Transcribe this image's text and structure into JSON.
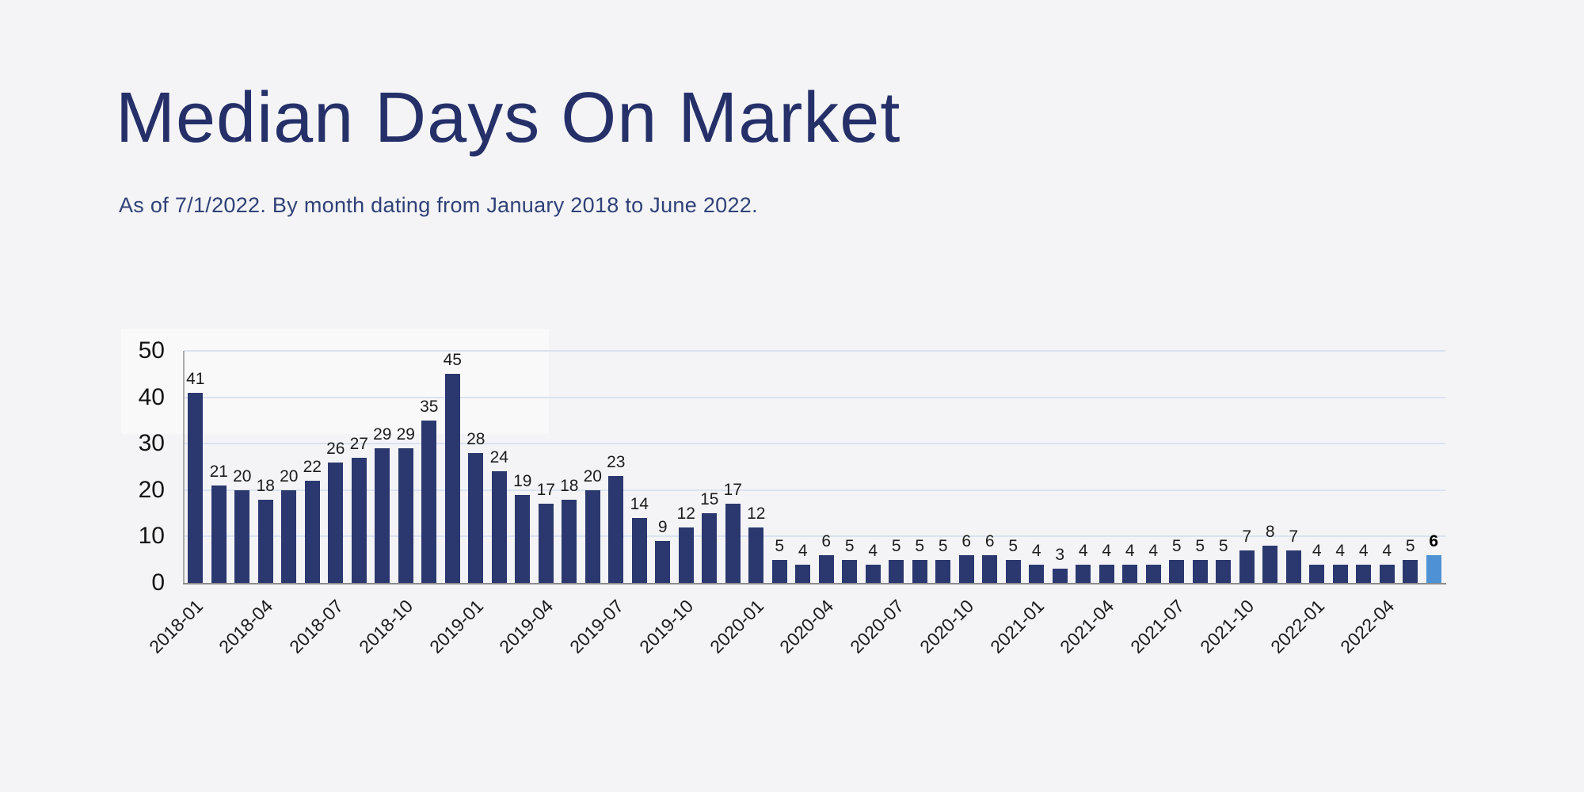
{
  "chart_data": {
    "type": "bar",
    "title": "Median Days On Market",
    "subtitle": "As of 7/1/2022. By month dating from January 2018 to June 2022.",
    "xlabel": "",
    "ylabel": "",
    "x": [
      "2018-01",
      "2018-02",
      "2018-03",
      "2018-04",
      "2018-05",
      "2018-06",
      "2018-07",
      "2018-08",
      "2018-09",
      "2018-10",
      "2018-11",
      "2018-12",
      "2019-01",
      "2019-02",
      "2019-03",
      "2019-04",
      "2019-05",
      "2019-06",
      "2019-07",
      "2019-08",
      "2019-09",
      "2019-10",
      "2019-11",
      "2019-12",
      "2020-01",
      "2020-02",
      "2020-03",
      "2020-04",
      "2020-05",
      "2020-06",
      "2020-07",
      "2020-08",
      "2020-09",
      "2020-10",
      "2020-11",
      "2020-12",
      "2021-01",
      "2021-02",
      "2021-03",
      "2021-04",
      "2021-05",
      "2021-06",
      "2021-07",
      "2021-08",
      "2021-09",
      "2021-10",
      "2021-11",
      "2021-12",
      "2022-01",
      "2022-02",
      "2022-03",
      "2022-04",
      "2022-05",
      "2022-06"
    ],
    "values": [
      41,
      21,
      20,
      18,
      20,
      22,
      26,
      27,
      29,
      29,
      35,
      45,
      28,
      24,
      19,
      17,
      18,
      20,
      23,
      14,
      9,
      12,
      15,
      17,
      12,
      5,
      4,
      6,
      5,
      4,
      5,
      5,
      5,
      6,
      6,
      5,
      4,
      3,
      4,
      4,
      4,
      4,
      5,
      5,
      5,
      7,
      8,
      7,
      4,
      4,
      4,
      4,
      5,
      6
    ],
    "ylim": [
      0,
      50
    ],
    "yticks": [
      0,
      10,
      20,
      30,
      40,
      50
    ],
    "x_tick_every": 3,
    "x_tick_labels": [
      "2018-01",
      "2018-04",
      "2018-07",
      "2018-10",
      "2019-01",
      "2019-04",
      "2019-07",
      "2019-10",
      "2020-01",
      "2020-04",
      "2020-07",
      "2020-10",
      "2021-01",
      "2021-04",
      "2021-07",
      "2021-10",
      "2022-01",
      "2022-04"
    ],
    "grid": true,
    "legend_position": "none",
    "value_labels": true,
    "highlight_index": 53,
    "highlight_value": 6
  },
  "colors": {
    "background": "#f4f4f6",
    "title": "#253069",
    "subtitle": "#2f4178",
    "bar": "#2b386f",
    "bar_highlight": "#4e92d5",
    "gridline": "#dbe2f0",
    "axis_line": "#ababab",
    "baseline": "#8c8c8c",
    "value_label": "#1c1c1c",
    "value_label_highlight": "#000000"
  }
}
